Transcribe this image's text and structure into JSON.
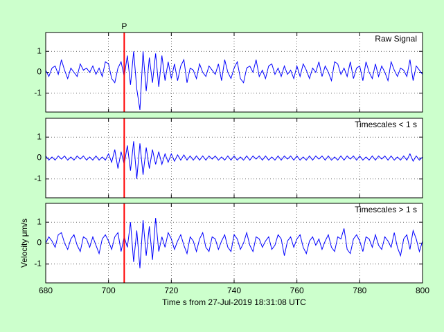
{
  "chart_data": [
    {
      "type": "line",
      "label": "Raw Signal",
      "vline": 705,
      "vline_label": "P",
      "vline_color": "#ff0000",
      "grid": true,
      "show_xtick_labels": false,
      "xlim": [
        680,
        800
      ],
      "xticks": [
        680,
        700,
        720,
        740,
        760,
        780,
        800
      ],
      "ylim": [
        -1.9,
        1.9
      ],
      "yticks": [
        -1,
        0,
        1
      ],
      "x": [
        680,
        681,
        682,
        683,
        684,
        685,
        686,
        687,
        688,
        689,
        690,
        691,
        692,
        693,
        694,
        695,
        696,
        697,
        698,
        699,
        700,
        701,
        702,
        703,
        704,
        705,
        706,
        707,
        708,
        709,
        710,
        711,
        712,
        713,
        714,
        715,
        716,
        717,
        718,
        719,
        720,
        721,
        722,
        723,
        724,
        725,
        726,
        727,
        728,
        729,
        730,
        731,
        732,
        733,
        734,
        735,
        736,
        737,
        738,
        739,
        740,
        741,
        742,
        743,
        744,
        745,
        746,
        747,
        748,
        749,
        750,
        751,
        752,
        753,
        754,
        755,
        756,
        757,
        758,
        759,
        760,
        761,
        762,
        763,
        764,
        765,
        766,
        767,
        768,
        769,
        770,
        771,
        772,
        773,
        774,
        775,
        776,
        777,
        778,
        779,
        780,
        781,
        782,
        783,
        784,
        785,
        786,
        787,
        788,
        789,
        790,
        791,
        792,
        793,
        794,
        795,
        796,
        797,
        798,
        799,
        800
      ],
      "series": [
        {
          "color": "#0000ff",
          "values": [
            0.1,
            -0.2,
            0.2,
            0.3,
            -0.1,
            0.6,
            0.1,
            -0.3,
            0.2,
            0.0,
            -0.2,
            0.4,
            0.1,
            0.2,
            0.0,
            0.3,
            -0.1,
            0.2,
            -0.2,
            0.5,
            0.4,
            -0.3,
            -0.5,
            0.2,
            0.5,
            -0.2,
            0.8,
            -0.6,
            1.0,
            -0.8,
            -1.8,
            1.0,
            -0.9,
            0.7,
            -0.5,
            0.9,
            -0.7,
            0.8,
            -0.4,
            0.5,
            -0.3,
            0.4,
            -0.4,
            0.3,
            0.6,
            -0.5,
            0.2,
            0.1,
            -0.3,
            0.4,
            0.0,
            -0.2,
            0.3,
            0.1,
            -0.1,
            0.4,
            -0.4,
            0.6,
            0.0,
            -0.3,
            0.2,
            0.5,
            -0.3,
            -0.5,
            0.2,
            0.3,
            0.0,
            0.6,
            -0.2,
            0.1,
            -0.3,
            0.3,
            0.4,
            -0.1,
            0.2,
            -0.2,
            0.3,
            -0.1,
            0.1,
            -0.3,
            0.3,
            -0.2,
            0.4,
            0.1,
            -0.3,
            0.2,
            0.0,
            0.5,
            -0.2,
            0.3,
            0.0,
            -0.4,
            0.5,
            0.4,
            -0.1,
            0.2,
            -0.2,
            0.5,
            -0.3,
            0.2,
            0.3,
            -0.4,
            0.5,
            0.0,
            -0.3,
            0.4,
            -0.2,
            0.3,
            0.0,
            -0.4,
            0.5,
            0.1,
            -0.2,
            0.2,
            0.1,
            -0.2,
            0.6,
            -0.4,
            0.3,
            0.1,
            -0.1
          ]
        }
      ]
    },
    {
      "type": "line",
      "label": "Timescales < 1 s",
      "vline": 705,
      "vline_color": "#ff0000",
      "grid": true,
      "show_xtick_labels": false,
      "xlim": [
        680,
        800
      ],
      "xticks": [
        680,
        700,
        720,
        740,
        760,
        780,
        800
      ],
      "ylim": [
        -1.9,
        1.9
      ],
      "yticks": [
        -1,
        0,
        1
      ],
      "x": [
        680,
        681,
        682,
        683,
        684,
        685,
        686,
        687,
        688,
        689,
        690,
        691,
        692,
        693,
        694,
        695,
        696,
        697,
        698,
        699,
        700,
        701,
        702,
        703,
        704,
        705,
        706,
        707,
        708,
        709,
        710,
        711,
        712,
        713,
        714,
        715,
        716,
        717,
        718,
        719,
        720,
        721,
        722,
        723,
        724,
        725,
        726,
        727,
        728,
        729,
        730,
        731,
        732,
        733,
        734,
        735,
        736,
        737,
        738,
        739,
        740,
        741,
        742,
        743,
        744,
        745,
        746,
        747,
        748,
        749,
        750,
        751,
        752,
        753,
        754,
        755,
        756,
        757,
        758,
        759,
        760,
        761,
        762,
        763,
        764,
        765,
        766,
        767,
        768,
        769,
        770,
        771,
        772,
        773,
        774,
        775,
        776,
        777,
        778,
        779,
        780,
        781,
        782,
        783,
        784,
        785,
        786,
        787,
        788,
        789,
        790,
        791,
        792,
        793,
        794,
        795,
        796,
        797,
        798,
        799,
        800
      ],
      "series": [
        {
          "color": "#0000ff",
          "values": [
            0.1,
            -0.1,
            0.05,
            -0.1,
            0.1,
            -0.05,
            0.1,
            -0.1,
            0.05,
            -0.1,
            0.1,
            -0.05,
            0.1,
            -0.1,
            0.05,
            -0.1,
            0.1,
            -0.1,
            0.05,
            -0.1,
            0.2,
            -0.2,
            0.4,
            -0.5,
            0.3,
            -0.3,
            0.6,
            -0.6,
            0.8,
            -1.0,
            0.7,
            -0.8,
            0.5,
            -0.5,
            0.4,
            -0.3,
            0.3,
            -0.3,
            0.2,
            -0.2,
            0.2,
            -0.15,
            0.15,
            -0.1,
            0.15,
            -0.1,
            0.1,
            -0.1,
            0.1,
            -0.1,
            0.1,
            -0.1,
            0.1,
            -0.05,
            0.1,
            -0.1,
            0.05,
            -0.1,
            0.1,
            -0.1,
            0.1,
            -0.1,
            0.05,
            -0.1,
            0.1,
            -0.1,
            0.1,
            -0.05,
            0.1,
            -0.1,
            0.1,
            -0.1,
            0.05,
            -0.1,
            0.1,
            -0.1,
            0.1,
            -0.05,
            0.1,
            -0.1,
            0.1,
            -0.1,
            0.05,
            -0.1,
            0.1,
            -0.1,
            0.1,
            -0.05,
            0.1,
            -0.1,
            0.1,
            -0.1,
            0.05,
            -0.1,
            0.1,
            -0.1,
            0.1,
            -0.05,
            0.1,
            -0.1,
            0.1,
            -0.1,
            0.05,
            -0.1,
            0.1,
            -0.1,
            0.1,
            -0.05,
            0.1,
            -0.1,
            0.1,
            -0.1,
            0.05,
            -0.1,
            0.1,
            -0.1,
            0.2,
            -0.15,
            0.1,
            -0.1,
            0.05
          ]
        }
      ]
    },
    {
      "type": "line",
      "label": "Timescales > 1 s",
      "vline": 705,
      "vline_color": "#ff0000",
      "grid": true,
      "show_xtick_labels": true,
      "xlabel": "Time s from 27-Jul-2019 18:31:08 UTC",
      "ylabel": "Velocity μm/s",
      "xlim": [
        680,
        800
      ],
      "xticks": [
        680,
        700,
        720,
        740,
        760,
        780,
        800
      ],
      "ylim": [
        -1.9,
        1.9
      ],
      "yticks": [
        -1,
        0,
        1
      ],
      "x": [
        680,
        681,
        682,
        683,
        684,
        685,
        686,
        687,
        688,
        689,
        690,
        691,
        692,
        693,
        694,
        695,
        696,
        697,
        698,
        699,
        700,
        701,
        702,
        703,
        704,
        705,
        706,
        707,
        708,
        709,
        710,
        711,
        712,
        713,
        714,
        715,
        716,
        717,
        718,
        719,
        720,
        721,
        722,
        723,
        724,
        725,
        726,
        727,
        728,
        729,
        730,
        731,
        732,
        733,
        734,
        735,
        736,
        737,
        738,
        739,
        740,
        741,
        742,
        743,
        744,
        745,
        746,
        747,
        748,
        749,
        750,
        751,
        752,
        753,
        754,
        755,
        756,
        757,
        758,
        759,
        760,
        761,
        762,
        763,
        764,
        765,
        766,
        767,
        768,
        769,
        770,
        771,
        772,
        773,
        774,
        775,
        776,
        777,
        778,
        779,
        780,
        781,
        782,
        783,
        784,
        785,
        786,
        787,
        788,
        789,
        790,
        791,
        792,
        793,
        794,
        795,
        796,
        797,
        798,
        799,
        800
      ],
      "series": [
        {
          "color": "#0000ff",
          "values": [
            0.0,
            0.3,
            0.1,
            -0.2,
            0.4,
            0.5,
            0.0,
            -0.3,
            0.2,
            0.4,
            -0.1,
            -0.4,
            0.3,
            0.2,
            -0.2,
            0.3,
            -0.1,
            -0.5,
            0.2,
            0.4,
            0.1,
            -0.3,
            0.3,
            0.5,
            -0.4,
            0.3,
            -0.2,
            1.0,
            -0.9,
            0.6,
            -1.2,
            1.1,
            -0.6,
            0.8,
            -0.8,
            1.2,
            -0.4,
            0.3,
            -0.2,
            0.5,
            0.2,
            -0.3,
            0.1,
            0.4,
            -0.1,
            -0.5,
            0.3,
            0.1,
            -0.4,
            0.2,
            0.5,
            -0.2,
            -0.4,
            0.3,
            0.2,
            -0.3,
            0.1,
            0.4,
            -0.2,
            -0.4,
            0.4,
            0.2,
            -0.3,
            0.0,
            0.5,
            -0.1,
            -0.4,
            0.3,
            0.2,
            -0.2,
            0.1,
            0.3,
            -0.3,
            -0.1,
            0.4,
            0.2,
            -0.6,
            0.1,
            0.3,
            -0.2,
            0.2,
            0.4,
            -0.2,
            -0.5,
            0.1,
            0.3,
            -0.1,
            0.2,
            -0.3,
            0.1,
            0.4,
            -0.2,
            -0.4,
            0.3,
            0.2,
            0.7,
            -0.3,
            -0.5,
            0.2,
            0.4,
            0.1,
            -0.4,
            0.3,
            0.2,
            -0.2,
            0.4,
            -0.1,
            -0.3,
            0.3,
            0.1,
            -0.2,
            0.5,
            -0.2,
            -0.6,
            0.2,
            0.4,
            -0.3,
            0.6,
            0.2,
            -0.4,
            0.1
          ]
        }
      ]
    }
  ]
}
